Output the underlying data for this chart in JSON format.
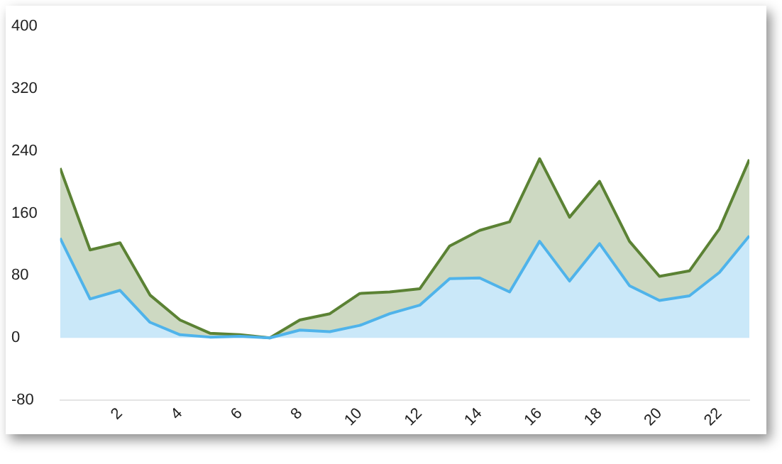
{
  "chart_data": {
    "type": "area",
    "stacked": true,
    "x": [
      0,
      1,
      2,
      3,
      4,
      5,
      6,
      7,
      8,
      9,
      10,
      11,
      12,
      13,
      14,
      15,
      16,
      17,
      18,
      19,
      20,
      21,
      22,
      23
    ],
    "series": [
      {
        "color": "#4fb3ea",
        "values": [
          128,
          50,
          61,
          20,
          4,
          1,
          2,
          0,
          10,
          8,
          16,
          31,
          42,
          76,
          77,
          59,
          124,
          73,
          121,
          67,
          48,
          54,
          84,
          131
        ]
      },
      {
        "color": "#5b8234",
        "values": [
          90,
          63,
          61,
          35,
          19,
          5,
          2,
          0,
          13,
          23,
          41,
          28,
          21,
          42,
          61,
          90,
          106,
          82,
          80,
          57,
          31,
          32,
          56,
          98
        ]
      }
    ],
    "xlim": [
      0,
      23
    ],
    "xticks": [
      2,
      4,
      6,
      8,
      10,
      12,
      14,
      16,
      18,
      20,
      22
    ],
    "ylim": [
      -80,
      400
    ],
    "yticks": [
      -80,
      0,
      80,
      160,
      240,
      320,
      400
    ],
    "grid": false,
    "legend": false,
    "marker": "none",
    "line_style": "solid"
  }
}
